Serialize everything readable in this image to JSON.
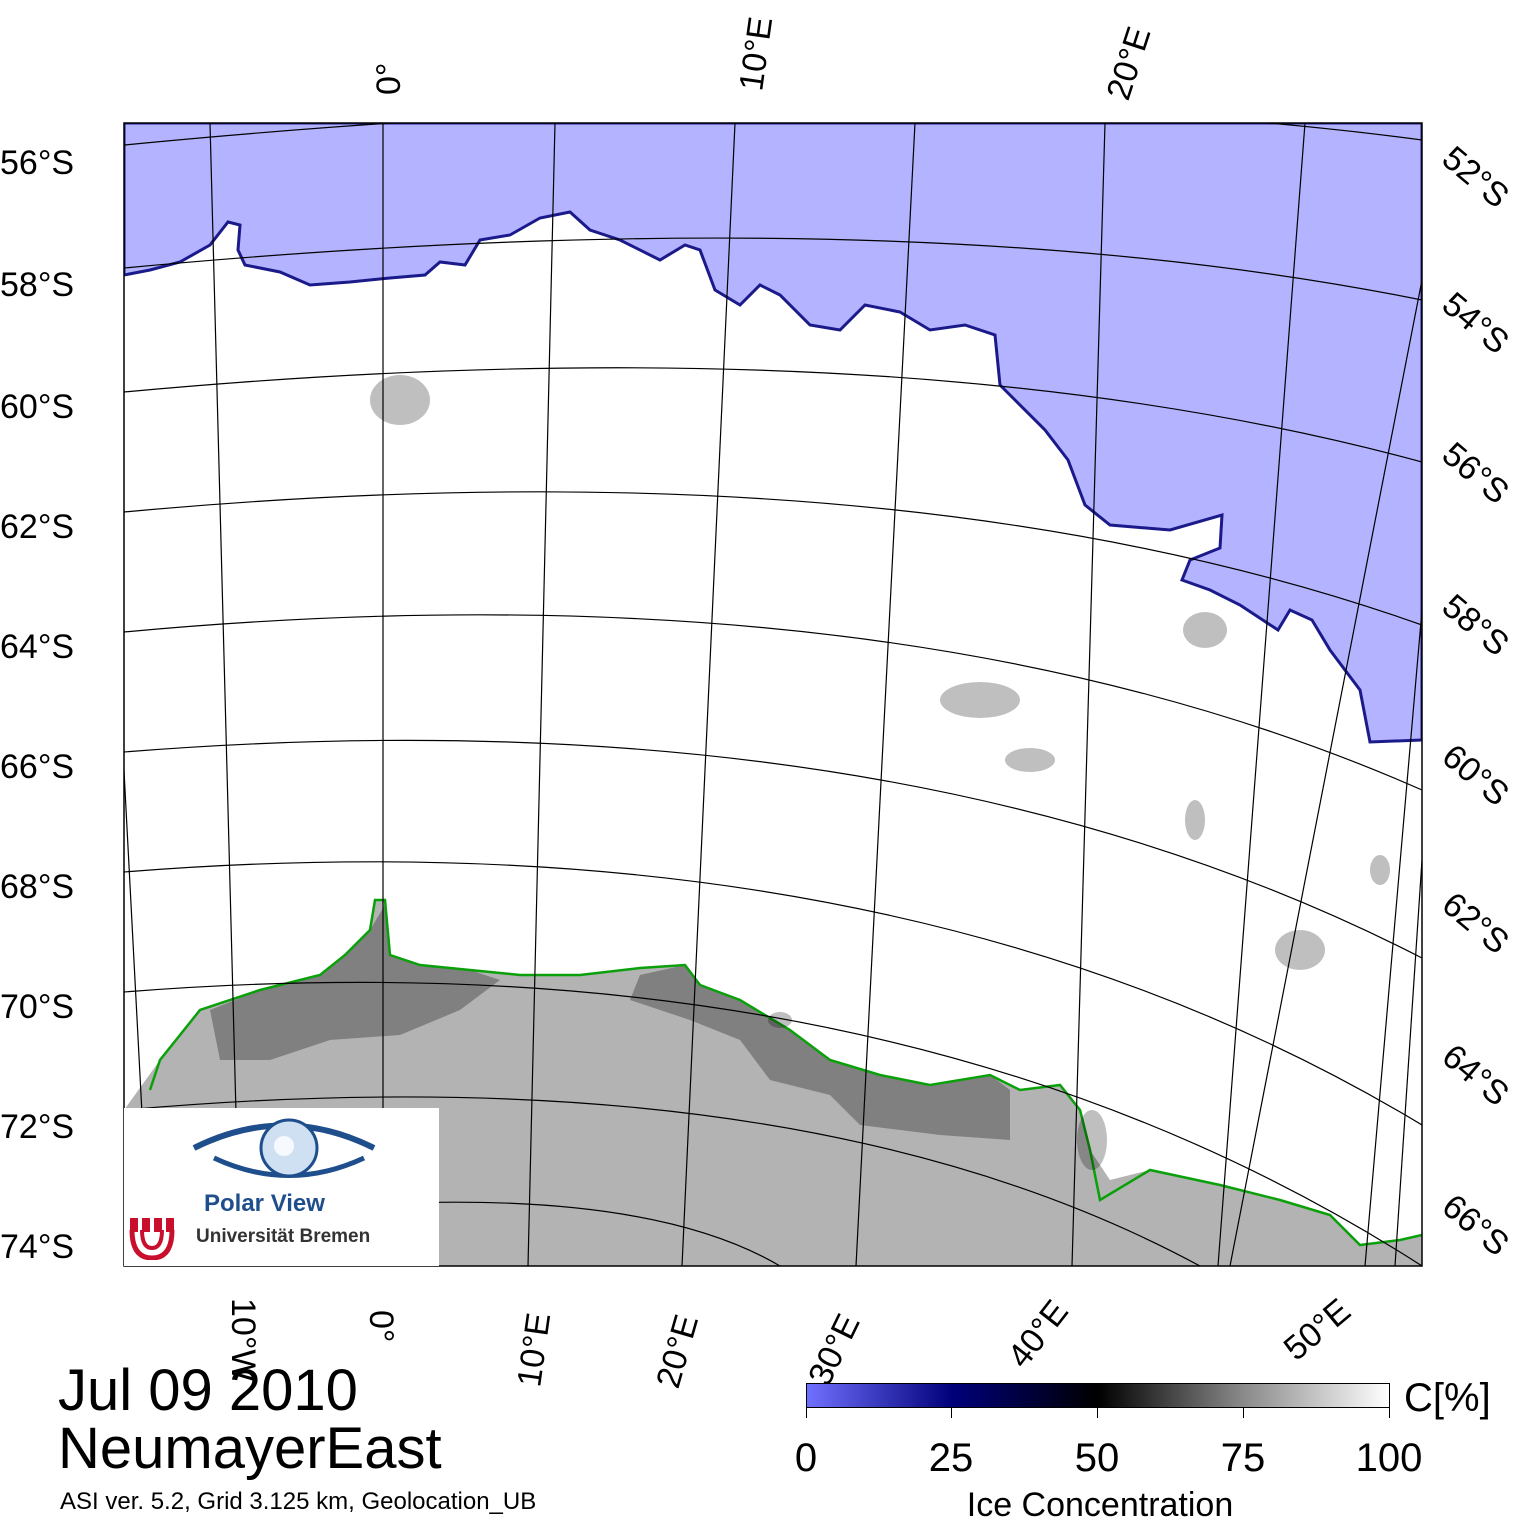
{
  "map": {
    "date": "Jul 09 2010",
    "region": "NeumayerEast",
    "product_info": "ASI ver. 5.2,  Grid 3.125 km, Geolocation_UB",
    "colors": {
      "open_water": "#b3b3ff",
      "land": "#b3b3b3",
      "ice_shelf": "#808080",
      "coastline": "#0aa00a",
      "sea_ice": "#ffffff",
      "graticule": "#000000"
    },
    "latitude_labels_left": [
      "56°S",
      "58°S",
      "60°S",
      "62°S",
      "64°S",
      "66°S",
      "68°S",
      "70°S",
      "72°S",
      "74°S"
    ],
    "latitude_labels_right": [
      "52°S",
      "54°S",
      "56°S",
      "58°S",
      "60°S",
      "62°S",
      "64°S",
      "66°S"
    ],
    "longitude_labels_top": [
      "0°",
      "10°E",
      "20°E"
    ],
    "longitude_labels_bottom": [
      "10°W",
      "0°",
      "10°E",
      "20°E",
      "30°E",
      "40°E",
      "50°E"
    ]
  },
  "colorbar": {
    "ticks": [
      "0",
      "25",
      "50",
      "75",
      "100"
    ],
    "unit": "C[%]",
    "title": "Ice Concentration",
    "stops": [
      "#7070ff",
      "#00007a",
      "#000000",
      "#8a8a8a",
      "#ffffff"
    ]
  },
  "logo": {
    "name": "Polar View",
    "university": "Universität Bremen",
    "icon": "eye-globe-icon",
    "seal": "university-seal-icon"
  }
}
